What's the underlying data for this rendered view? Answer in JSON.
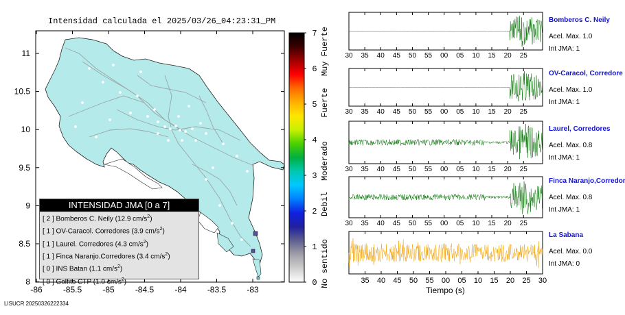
{
  "title": "Intensidad calculada el 2025/03/26_04:23:31_PM",
  "footer": "LISUCR 20250326222334",
  "map": {
    "x_ticks": [
      "-86",
      "-85.5",
      "-85",
      "-84.5",
      "-84",
      "-83.5",
      "-83"
    ],
    "y_ticks": [
      "11",
      "10.5",
      "10",
      "9.5",
      "9",
      "8.5",
      "8"
    ],
    "land_color": "#b4eaea",
    "station_marker_color": "#5a4ea0"
  },
  "colorbar": {
    "ticks": [
      "0",
      "1",
      "2",
      "3",
      "4",
      "5",
      "6",
      "7"
    ],
    "labels": [
      "No sentido",
      "Debil",
      "Moderado",
      "Fuerte",
      "Muy Fuerte"
    ]
  },
  "legend": {
    "title": "INTENSIDAD JMA [0 a 7]",
    "rows": [
      {
        "level": "[ 2 ]",
        "name": "Bomberos C. Neily (12.9 cm/s",
        "sup": "2",
        "close": ")"
      },
      {
        "level": "[ 1 ]",
        "name": "OV-Caracol. Corredores (3.9 cm/s",
        "sup": "2",
        "close": ")"
      },
      {
        "level": "[ 1 ]",
        "name": "Laurel. Corredores (4.3 cm/s",
        "sup": "2",
        "close": ")"
      },
      {
        "level": "[ 1 ]",
        "name": "Finca Naranjo.Corredores (3.4 cm/s",
        "sup": "2",
        "close": ")"
      },
      {
        "level": "[ 0 ]",
        "name": "INS Batan (1.1 cm/s",
        "sup": "2",
        "close": ")"
      },
      {
        "level": "[ 0 ]",
        "name": "Golfito CTP (1.0 cm/s",
        "sup": "2",
        "close": ")"
      }
    ]
  },
  "chart_data": [
    {
      "type": "line",
      "station": "Bomberos C. Neily",
      "x_ticks": [
        "30",
        "35",
        "40",
        "45",
        "50",
        "55",
        "00",
        "05",
        "10",
        "15",
        "20",
        "25"
      ],
      "aceleracion": "Acel. Max. 1.0",
      "intensidad": "Int JMA: 1",
      "color": "#007000"
    },
    {
      "type": "line",
      "station": "OV-Caracol, Corredore",
      "x_ticks": [
        "30",
        "35",
        "40",
        "45",
        "50",
        "55",
        "00",
        "05",
        "10",
        "15",
        "20",
        "25"
      ],
      "aceleracion": "Acel. Max. 1.0",
      "intensidad": "Int JMA: 1",
      "color": "#007000"
    },
    {
      "type": "line",
      "station": "Laurel, Corredores",
      "x_ticks": [
        "30",
        "35",
        "40",
        "45",
        "50",
        "55",
        "00",
        "05",
        "10",
        "15",
        "20",
        "25"
      ],
      "aceleracion": "Acel. Max. 0.8",
      "intensidad": "Int JMA: 1",
      "color": "#007000"
    },
    {
      "type": "line",
      "station": "Finca Naranjo,Corredor",
      "x_ticks": [
        "30",
        "35",
        "40",
        "45",
        "50",
        "55",
        "00",
        "05",
        "10",
        "15",
        "20",
        "25"
      ],
      "aceleracion": "Acel. Max. 0.8",
      "intensidad": "Int JMA: 1",
      "color": "#007000"
    },
    {
      "type": "line",
      "station": "La Sabana",
      "x_ticks": [
        "35",
        "40",
        "45",
        "50",
        "55",
        "00",
        "05",
        "10",
        "15",
        "20",
        "25",
        "30"
      ],
      "aceleracion": "Acel. Max. 0.0",
      "intensidad": "Int JMA: 0",
      "xlabel": "Tiempo (s)",
      "color": "#f0a000"
    }
  ]
}
